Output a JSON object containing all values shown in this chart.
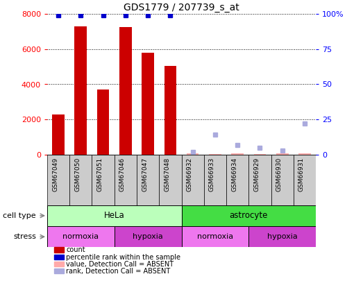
{
  "title": "GDS1779 / 207739_s_at",
  "samples": [
    "GSM67049",
    "GSM67050",
    "GSM67051",
    "GSM67046",
    "GSM67047",
    "GSM67048",
    "GSM66932",
    "GSM66933",
    "GSM66934",
    "GSM66929",
    "GSM66930",
    "GSM66931"
  ],
  "count_values": [
    2300,
    7300,
    3700,
    7250,
    5800,
    5050,
    null,
    null,
    null,
    null,
    null,
    null
  ],
  "count_absent_values": [
    null,
    null,
    null,
    null,
    null,
    null,
    50,
    20,
    50,
    20,
    50,
    50
  ],
  "percentile_values": [
    99,
    99,
    99,
    99,
    99,
    99,
    null,
    null,
    null,
    null,
    null,
    null
  ],
  "percentile_absent_values": [
    null,
    null,
    null,
    null,
    null,
    null,
    2,
    14,
    7,
    5,
    3,
    22
  ],
  "bar_color": "#cc0000",
  "percentile_color": "#0000cc",
  "absent_count_color": "#ffaaaa",
  "absent_rank_color": "#aaaadd",
  "ylim_left": [
    0,
    8000
  ],
  "ylim_right": [
    0,
    100
  ],
  "yticks_left": [
    0,
    2000,
    4000,
    6000,
    8000
  ],
  "yticks_right": [
    0,
    25,
    50,
    75,
    100
  ],
  "yticklabels_right": [
    "0",
    "25",
    "50",
    "75",
    "100%"
  ],
  "cell_type_labels": [
    {
      "label": "HeLa",
      "start": 0,
      "end": 6,
      "color": "#bbffbb"
    },
    {
      "label": "astrocyte",
      "start": 6,
      "end": 12,
      "color": "#44dd44"
    }
  ],
  "stress_labels": [
    {
      "label": "normoxia",
      "start": 0,
      "end": 3,
      "color": "#ee77ee"
    },
    {
      "label": "hypoxia",
      "start": 3,
      "end": 6,
      "color": "#cc44cc"
    },
    {
      "label": "normoxia",
      "start": 6,
      "end": 9,
      "color": "#ee77ee"
    },
    {
      "label": "hypoxia",
      "start": 9,
      "end": 12,
      "color": "#cc44cc"
    }
  ],
  "legend_items": [
    {
      "label": "count",
      "color": "#cc0000"
    },
    {
      "label": "percentile rank within the sample",
      "color": "#0000cc"
    },
    {
      "label": "value, Detection Call = ABSENT",
      "color": "#ffaaaa"
    },
    {
      "label": "rank, Detection Call = ABSENT",
      "color": "#aaaadd"
    }
  ],
  "xticklabel_bg": "#cccccc"
}
